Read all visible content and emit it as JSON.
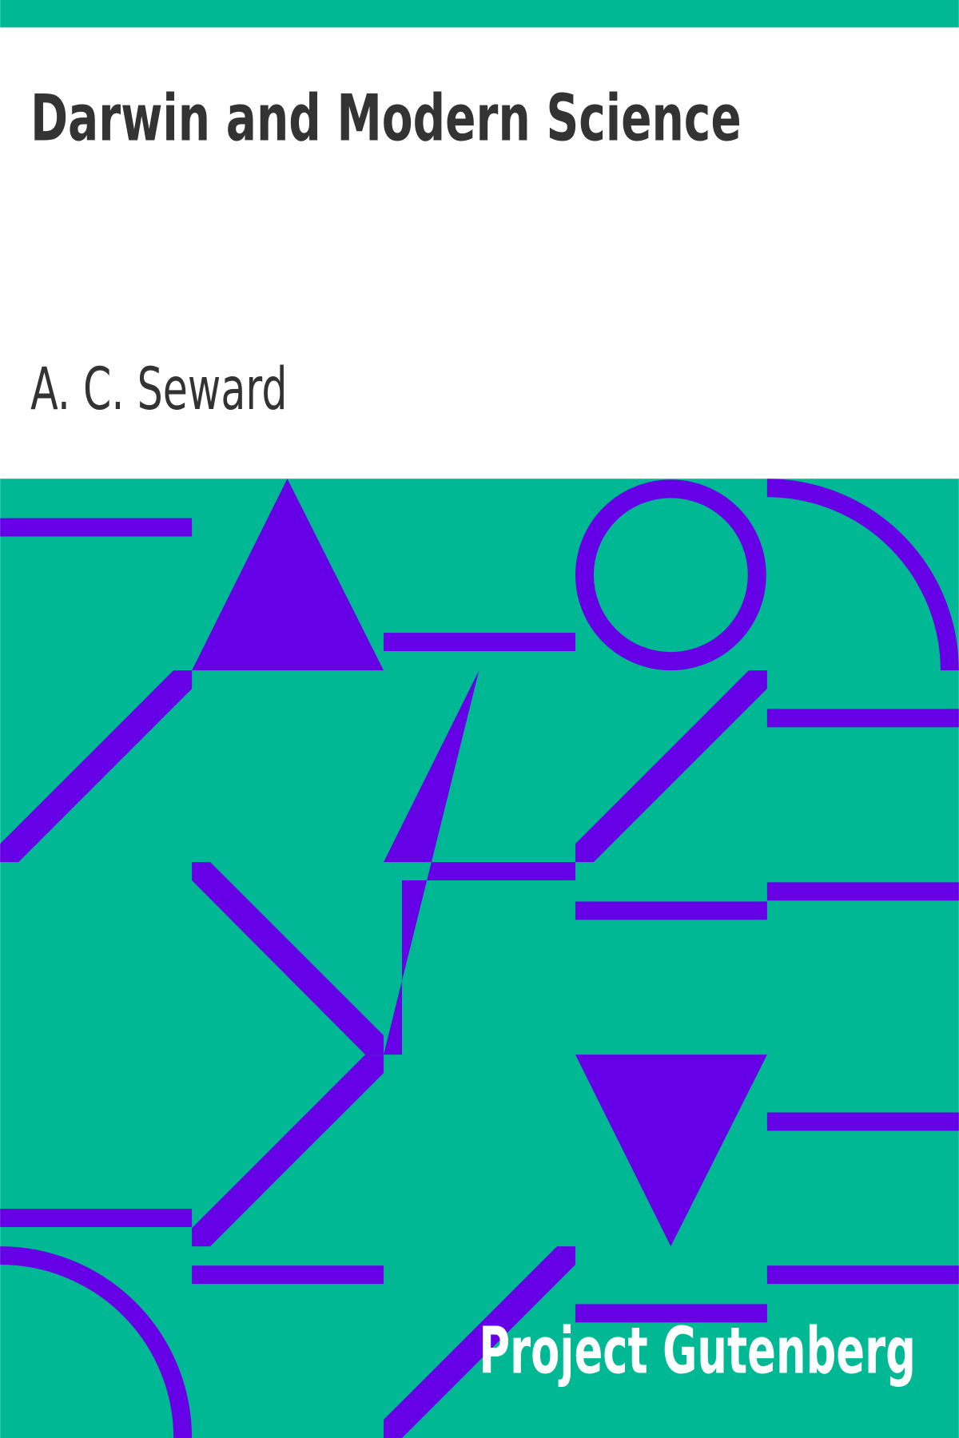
{
  "title": "Darwin and Modern Science",
  "author": "A. C. Seward",
  "publisher": "Project Gutenberg"
}
